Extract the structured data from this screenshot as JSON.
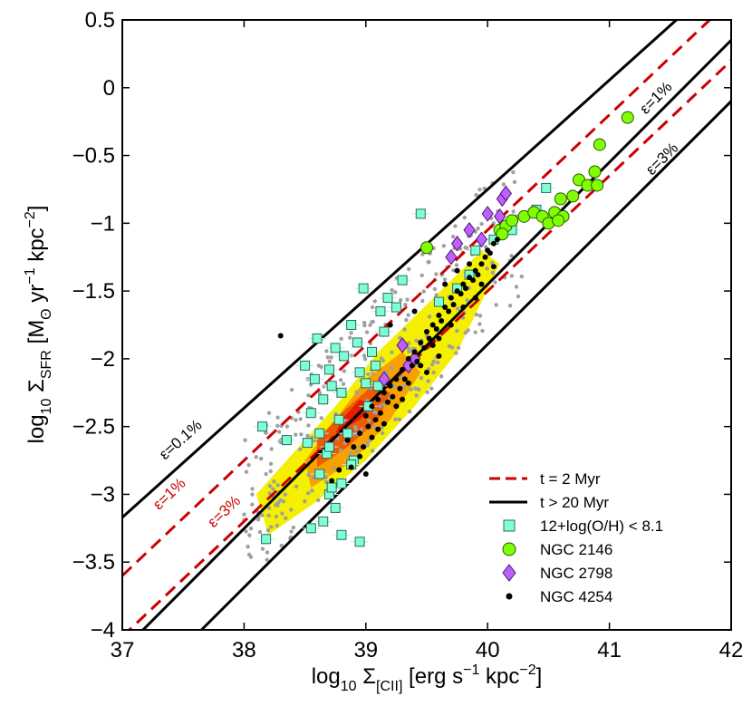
{
  "chart_data": {
    "type": "scatter",
    "xlabel": {
      "pre": "log",
      "pre_sub": "10",
      "sym": " Σ",
      "sym_sub": "[CII]",
      "u1": " [erg s",
      "e1": "−1",
      "u2": " kpc",
      "e2": "−2",
      "u3": "]"
    },
    "ylabel": {
      "pre": "log",
      "pre_sub": "10",
      "sym": " Σ",
      "sym_sub": "SFR",
      "u1": " [M",
      "u1_sub": "ʘ",
      "u2": " yr",
      "e1": "−1",
      "u3": " kpc",
      "e2": "−2",
      "u4": "]"
    },
    "xlim": [
      37,
      42
    ],
    "ylim": [
      -4,
      0.5
    ],
    "xticks": [
      37,
      38,
      39,
      40,
      41,
      42
    ],
    "yticks": [
      0.5,
      0,
      -0.5,
      -1,
      -1.5,
      -2,
      -2.5,
      -3,
      -3.5,
      -4
    ],
    "ytick_labels": [
      "0.5",
      "0",
      "−0.5",
      "−1",
      "−1.5",
      "−2",
      "−2.5",
      "−3",
      "−3.5",
      "−4"
    ],
    "grid": false,
    "legend_position": "bottom-right",
    "legend": [
      {
        "label": "t = 2 Myr",
        "marker": "dashed-line",
        "color": "#cc0000"
      },
      {
        "label": "t > 20 Myr",
        "marker": "solid-line",
        "color": "#000000"
      },
      {
        "label": "12+log(O/H) < 8.1",
        "marker": "square",
        "color": "#7fffd4"
      },
      {
        "label": "NGC 2146",
        "marker": "circle",
        "color": "#7fff00"
      },
      {
        "label": "NGC 2798",
        "marker": "diamond",
        "color": "#bf5fff"
      },
      {
        "label": "NGC 4254",
        "marker": "dot",
        "color": "#000000"
      }
    ],
    "model_lines": [
      {
        "label": "ε=0.1%",
        "style": "solid",
        "color": "#000000",
        "points": [
          [
            37,
            -3.17
          ],
          [
            41.55,
            0.5
          ]
        ],
        "label_at": [
          37.35,
          -2.75
        ]
      },
      {
        "label": "ε=1%",
        "style": "dashed",
        "color": "#cc0000",
        "points": [
          [
            37,
            -3.6
          ],
          [
            42,
            0.65
          ]
        ],
        "label_at": [
          37.3,
          -3.12
        ]
      },
      {
        "label": "ε=3%",
        "style": "dashed",
        "color": "#cc0000",
        "points": [
          [
            37,
            -4.05
          ],
          [
            42,
            0.2
          ]
        ],
        "label_at": [
          37.75,
          -3.25
        ]
      },
      {
        "label": "ε=1%",
        "style": "solid",
        "color": "#000000",
        "points": [
          [
            37.17,
            -4.0
          ],
          [
            42,
            0.35
          ]
        ],
        "label_at": [
          41.3,
          -0.2
        ]
      },
      {
        "label": "ε=3%",
        "style": "solid",
        "color": "#000000",
        "points": [
          [
            37.65,
            -4.0
          ],
          [
            42,
            -0.1
          ]
        ],
        "label_at": [
          41.35,
          -0.65
        ]
      }
    ],
    "series": [
      {
        "name": "12+log(O/H) < 8.1",
        "marker": "square",
        "color": "#7fffd4",
        "points": [
          [
            38.15,
            -2.5
          ],
          [
            38.18,
            -3.33
          ],
          [
            38.35,
            -2.6
          ],
          [
            38.5,
            -2.05
          ],
          [
            38.55,
            -2.4
          ],
          [
            38.58,
            -2.15
          ],
          [
            38.6,
            -1.85
          ],
          [
            38.62,
            -2.55
          ],
          [
            38.65,
            -2.3
          ],
          [
            38.68,
            -2.7
          ],
          [
            38.7,
            -2.08
          ],
          [
            38.72,
            -2.2
          ],
          [
            38.75,
            -1.92
          ],
          [
            38.78,
            -2.45
          ],
          [
            38.8,
            -2.25
          ],
          [
            38.82,
            -1.98
          ],
          [
            38.85,
            -2.55
          ],
          [
            38.88,
            -1.75
          ],
          [
            38.9,
            -2.75
          ],
          [
            38.93,
            -1.88
          ],
          [
            38.95,
            -2.1
          ],
          [
            38.98,
            -1.48
          ],
          [
            39.0,
            -2.18
          ],
          [
            39.02,
            -2.35
          ],
          [
            39.05,
            -1.95
          ],
          [
            39.08,
            -2.05
          ],
          [
            39.1,
            -2.2
          ],
          [
            39.12,
            -1.65
          ],
          [
            39.15,
            -1.8
          ],
          [
            39.18,
            -1.55
          ],
          [
            39.25,
            -1.62
          ],
          [
            39.3,
            -1.42
          ],
          [
            39.45,
            -0.93
          ],
          [
            38.62,
            -2.85
          ],
          [
            38.7,
            -3.0
          ],
          [
            38.75,
            -3.1
          ],
          [
            38.8,
            -2.92
          ],
          [
            38.65,
            -3.2
          ],
          [
            38.55,
            -3.25
          ],
          [
            38.8,
            -3.3
          ],
          [
            38.95,
            -3.35
          ],
          [
            38.52,
            -2.62
          ],
          [
            38.88,
            -2.78
          ],
          [
            39.6,
            -1.58
          ],
          [
            39.75,
            -1.48
          ],
          [
            39.85,
            -1.38
          ],
          [
            39.9,
            -1.2
          ],
          [
            40.05,
            -1.12
          ],
          [
            40.2,
            -1.05
          ],
          [
            40.4,
            -0.9
          ],
          [
            40.48,
            -0.74
          ],
          [
            38.7,
            -2.65
          ],
          [
            38.72,
            -2.95
          ]
        ]
      },
      {
        "name": "NGC 2146",
        "marker": "circle",
        "color": "#7fff00",
        "points": [
          [
            39.5,
            -1.18
          ],
          [
            40.1,
            -1.05
          ],
          [
            40.15,
            -1.02
          ],
          [
            40.2,
            -0.98
          ],
          [
            40.3,
            -0.95
          ],
          [
            40.38,
            -0.92
          ],
          [
            40.45,
            -0.95
          ],
          [
            40.5,
            -1.0
          ],
          [
            40.55,
            -0.92
          ],
          [
            40.62,
            -0.95
          ],
          [
            40.6,
            -0.82
          ],
          [
            40.7,
            -0.8
          ],
          [
            40.75,
            -0.68
          ],
          [
            40.82,
            -0.72
          ],
          [
            40.88,
            -0.62
          ],
          [
            40.9,
            -0.72
          ],
          [
            40.92,
            -0.42
          ],
          [
            41.15,
            -0.22
          ],
          [
            40.12,
            -1.08
          ],
          [
            40.58,
            -0.98
          ]
        ]
      },
      {
        "name": "NGC 2798",
        "marker": "diamond",
        "color": "#bf5fff",
        "points": [
          [
            39.7,
            -1.25
          ],
          [
            39.75,
            -1.15
          ],
          [
            39.85,
            -1.05
          ],
          [
            39.95,
            -1.12
          ],
          [
            40.0,
            -0.93
          ],
          [
            40.1,
            -0.95
          ],
          [
            40.12,
            -0.82
          ],
          [
            40.15,
            -0.78
          ],
          [
            39.4,
            -2.0
          ],
          [
            39.3,
            -1.9
          ],
          [
            39.35,
            -2.05
          ],
          [
            39.15,
            -2.15
          ]
        ]
      },
      {
        "name": "NGC 4254",
        "marker": "dot",
        "color": "#000000",
        "points": [
          [
            38.3,
            -1.83
          ],
          [
            38.85,
            -2.6
          ],
          [
            38.9,
            -2.65
          ],
          [
            38.95,
            -2.55
          ],
          [
            39.0,
            -2.42
          ],
          [
            39.02,
            -2.5
          ],
          [
            39.05,
            -2.35
          ],
          [
            39.08,
            -2.45
          ],
          [
            39.1,
            -2.3
          ],
          [
            39.12,
            -2.4
          ],
          [
            39.15,
            -2.25
          ],
          [
            39.18,
            -2.32
          ],
          [
            39.2,
            -2.2
          ],
          [
            39.22,
            -2.28
          ],
          [
            39.25,
            -2.15
          ],
          [
            39.28,
            -2.22
          ],
          [
            39.3,
            -2.08
          ],
          [
            39.32,
            -2.15
          ],
          [
            39.35,
            -2.0
          ],
          [
            39.38,
            -2.05
          ],
          [
            39.4,
            -1.95
          ],
          [
            39.42,
            -2.02
          ],
          [
            39.45,
            -1.88
          ],
          [
            39.48,
            -1.92
          ],
          [
            39.5,
            -1.8
          ],
          [
            39.52,
            -1.85
          ],
          [
            39.55,
            -1.75
          ],
          [
            39.58,
            -1.78
          ],
          [
            39.6,
            -1.68
          ],
          [
            39.62,
            -1.72
          ],
          [
            39.65,
            -1.62
          ],
          [
            39.68,
            -1.65
          ],
          [
            39.7,
            -1.55
          ],
          [
            39.72,
            -1.6
          ],
          [
            39.75,
            -1.5
          ],
          [
            39.78,
            -1.52
          ],
          [
            39.8,
            -1.45
          ],
          [
            39.82,
            -1.48
          ],
          [
            39.85,
            -1.4
          ],
          [
            39.88,
            -1.42
          ],
          [
            39.9,
            -1.35
          ],
          [
            39.92,
            -1.38
          ],
          [
            39.95,
            -1.3
          ],
          [
            39.98,
            -1.25
          ],
          [
            40.0,
            -1.2
          ],
          [
            40.02,
            -1.22
          ],
          [
            40.05,
            -1.15
          ],
          [
            40.08,
            -1.12
          ],
          [
            39.6,
            -1.85
          ],
          [
            39.7,
            -1.75
          ],
          [
            39.8,
            -1.62
          ],
          [
            39.9,
            -1.55
          ],
          [
            39.55,
            -1.9
          ],
          [
            39.45,
            -2.05
          ],
          [
            39.35,
            -2.18
          ],
          [
            39.25,
            -2.35
          ],
          [
            39.15,
            -2.48
          ],
          [
            39.05,
            -2.58
          ],
          [
            38.95,
            -2.72
          ],
          [
            38.88,
            -2.8
          ],
          [
            39.2,
            -1.75
          ],
          [
            38.72,
            -2.9
          ],
          [
            38.78,
            -2.82
          ],
          [
            39.0,
            -2.85
          ],
          [
            39.4,
            -1.65
          ],
          [
            39.65,
            -1.45
          ],
          [
            39.75,
            -1.35
          ],
          [
            39.85,
            -1.3
          ],
          [
            39.95,
            -1.45
          ],
          [
            40.05,
            -1.32
          ],
          [
            39.5,
            -2.1
          ],
          [
            39.6,
            -1.98
          ],
          [
            39.3,
            -2.3
          ],
          [
            39.1,
            -2.52
          ],
          [
            38.98,
            -2.65
          ]
        ]
      }
    ]
  }
}
